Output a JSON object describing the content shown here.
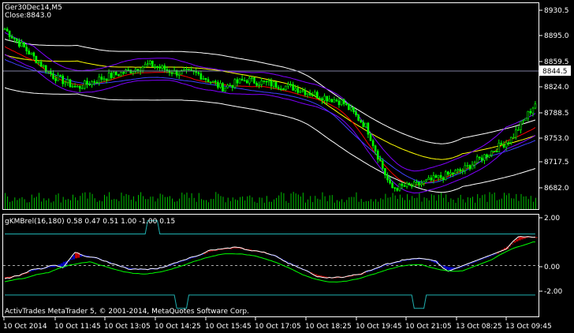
{
  "main_chart": {
    "symbol_label": "Ger30Dec14,M5",
    "close_label": "Close:8843.0",
    "current_price": "8844.5",
    "price_ticks": [
      "8930.5",
      "8895.0",
      "8859.5",
      "8824.0",
      "8788.5",
      "8753.0",
      "8717.5",
      "8682.0"
    ],
    "colors": {
      "bull": "#00ff00",
      "bear": "#00ff00",
      "volume": "#00c000",
      "price_line": "#9090b0",
      "env_outer": "#ffffff",
      "env_mid": "#ffff00",
      "ma_red": "#ff0000",
      "ma_blue": "#4040ff",
      "band_purple": "#8000ff"
    }
  },
  "sub_chart": {
    "title": "gKMBrel(16,180) 0.58 0.47 0.51 1.00 -1.00 0.15",
    "ticks": [
      "2.00",
      "0.00",
      "-2.00"
    ],
    "watermark": "ActivTrades MetaTrader 5, © 2001-2014, MetaQuotes Software Corp.",
    "colors": {
      "fill_blue": "#0000c0",
      "fill_red": "#c00000",
      "line_white": "#ffffff",
      "line_green": "#00ff00",
      "line_teal": "#20b0b0"
    }
  },
  "time_axis": {
    "labels": [
      "10 Oct 2014",
      "10 Oct 11:45",
      "10 Oct 13:05",
      "10 Oct 14:25",
      "10 Oct 15:45",
      "10 Oct 17:05",
      "10 Oct 18:25",
      "10 Oct 19:45",
      "10 Oct 21:05",
      "13 Oct 08:25",
      "13 Oct 09:45"
    ]
  },
  "chart_data": {
    "type": "line",
    "x_labels": [
      "10 Oct 2014",
      "10 Oct 11:45",
      "10 Oct 13:05",
      "10 Oct 14:25",
      "10 Oct 15:45",
      "10 Oct 17:05",
      "10 Oct 18:25",
      "10 Oct 19:45",
      "10 Oct 21:05",
      "13 Oct 08:25",
      "13 Oct 09:45"
    ],
    "price_close": [
      8905,
      8875,
      8845,
      8830,
      8842,
      8850,
      8860,
      8850,
      8848,
      8830,
      8840,
      8835,
      8830,
      8820,
      8812,
      8780,
      8702,
      8705,
      8715,
      8725,
      8745,
      8765,
      8810
    ],
    "ylim": [
      8675,
      8938
    ],
    "indicator_ylim": [
      -2.5,
      2.5
    ]
  }
}
